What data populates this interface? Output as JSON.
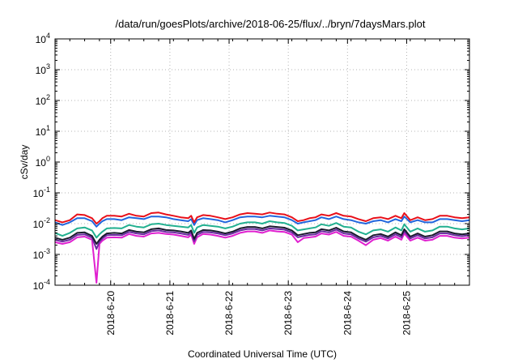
{
  "chart_data": {
    "type": "line",
    "title": "/data/run/goesPlots/archive/2018-06-25/flux/../bryn/7daysMars.plot",
    "xlabel": "Coordinated Universal Time (UTC)",
    "ylabel": "cSv/day",
    "x_range_days_from_jun19": [
      0,
      7
    ],
    "xticks": [
      {
        "x": 0.94,
        "label": "2018-6-20"
      },
      {
        "x": 1.94,
        "label": "2018-6-21"
      },
      {
        "x": 2.94,
        "label": "2018-6-22"
      },
      {
        "x": 3.94,
        "label": "2018-6-23"
      },
      {
        "x": 4.94,
        "label": "2018-6-24"
      },
      {
        "x": 5.94,
        "label": "2018-6-25"
      }
    ],
    "yscale": "log",
    "ylim": [
      0.0001,
      10000
    ],
    "yticks": [
      {
        "exp": -4,
        "base": "10",
        "sup": "-4"
      },
      {
        "exp": -3,
        "base": "10",
        "sup": "-3"
      },
      {
        "exp": -2,
        "base": "10",
        "sup": "-2"
      },
      {
        "exp": -1,
        "base": "10",
        "sup": "-1"
      },
      {
        "exp": 0,
        "base": "10",
        "sup": "0"
      },
      {
        "exp": 1,
        "base": "10",
        "sup": "1"
      },
      {
        "exp": 2,
        "base": "10",
        "sup": "2"
      },
      {
        "exp": 3,
        "base": "10",
        "sup": "3"
      },
      {
        "exp": 4,
        "base": "10",
        "sup": "4"
      }
    ],
    "grid": true,
    "x": [
      0,
      0.125,
      0.25,
      0.375,
      0.5,
      0.625,
      0.7,
      0.75,
      0.8,
      0.875,
      1.0,
      1.125,
      1.25,
      1.375,
      1.5,
      1.625,
      1.75,
      1.875,
      2.0,
      2.125,
      2.25,
      2.3,
      2.35,
      2.4,
      2.5,
      2.625,
      2.75,
      2.875,
      3.0,
      3.125,
      3.25,
      3.375,
      3.5,
      3.625,
      3.75,
      3.875,
      4.0,
      4.1,
      4.2,
      4.3,
      4.4,
      4.5,
      4.625,
      4.75,
      4.875,
      5.0,
      5.125,
      5.25,
      5.375,
      5.5,
      5.625,
      5.75,
      5.85,
      5.9,
      6.0,
      6.125,
      6.25,
      6.375,
      6.5,
      6.625,
      6.75,
      6.875,
      7.0
    ],
    "series": [
      {
        "color": "#e8101a",
        "values": [
          0.013,
          0.011,
          0.013,
          0.02,
          0.019,
          0.015,
          0.01,
          0.012,
          0.015,
          0.018,
          0.018,
          0.017,
          0.021,
          0.018,
          0.017,
          0.022,
          0.023,
          0.02,
          0.018,
          0.016,
          0.015,
          0.018,
          0.011,
          0.016,
          0.019,
          0.018,
          0.016,
          0.014,
          0.016,
          0.02,
          0.022,
          0.021,
          0.02,
          0.023,
          0.021,
          0.02,
          0.016,
          0.012,
          0.013,
          0.015,
          0.016,
          0.02,
          0.018,
          0.022,
          0.018,
          0.017,
          0.014,
          0.012,
          0.015,
          0.016,
          0.014,
          0.018,
          0.015,
          0.022,
          0.013,
          0.016,
          0.013,
          0.014,
          0.018,
          0.018,
          0.016,
          0.015,
          0.016
        ]
      },
      {
        "color": "#2266dd",
        "values": [
          0.011,
          0.009,
          0.011,
          0.015,
          0.015,
          0.012,
          0.008,
          0.01,
          0.012,
          0.014,
          0.014,
          0.013,
          0.016,
          0.015,
          0.014,
          0.017,
          0.017,
          0.016,
          0.014,
          0.013,
          0.012,
          0.014,
          0.009,
          0.013,
          0.015,
          0.014,
          0.013,
          0.011,
          0.013,
          0.016,
          0.017,
          0.017,
          0.016,
          0.018,
          0.017,
          0.016,
          0.013,
          0.01,
          0.011,
          0.012,
          0.013,
          0.016,
          0.014,
          0.017,
          0.014,
          0.013,
          0.011,
          0.01,
          0.012,
          0.013,
          0.011,
          0.014,
          0.012,
          0.017,
          0.011,
          0.013,
          0.011,
          0.011,
          0.014,
          0.014,
          0.013,
          0.012,
          0.013
        ]
      },
      {
        "color": "#22b090",
        "values": [
          0.005,
          0.004,
          0.005,
          0.007,
          0.0075,
          0.006,
          0.0035,
          0.0045,
          0.0055,
          0.007,
          0.0072,
          0.007,
          0.009,
          0.008,
          0.0075,
          0.0095,
          0.01,
          0.009,
          0.0085,
          0.008,
          0.0075,
          0.009,
          0.005,
          0.0075,
          0.009,
          0.0085,
          0.008,
          0.007,
          0.008,
          0.01,
          0.011,
          0.011,
          0.01,
          0.012,
          0.011,
          0.0105,
          0.0085,
          0.006,
          0.0065,
          0.007,
          0.0075,
          0.0095,
          0.0085,
          0.0105,
          0.008,
          0.0075,
          0.0055,
          0.0045,
          0.006,
          0.0065,
          0.0055,
          0.0075,
          0.006,
          0.0095,
          0.0055,
          0.007,
          0.0055,
          0.006,
          0.008,
          0.008,
          0.007,
          0.0065,
          0.007
        ]
      },
      {
        "color": "#1a1a2e",
        "values": [
          0.0035,
          0.003,
          0.0035,
          0.005,
          0.0052,
          0.004,
          0.0022,
          0.003,
          0.0038,
          0.0048,
          0.005,
          0.0048,
          0.0062,
          0.0055,
          0.0052,
          0.0066,
          0.007,
          0.0062,
          0.006,
          0.0056,
          0.005,
          0.006,
          0.0032,
          0.005,
          0.0062,
          0.006,
          0.0055,
          0.0048,
          0.0055,
          0.007,
          0.0078,
          0.0078,
          0.007,
          0.0082,
          0.0078,
          0.0074,
          0.006,
          0.0042,
          0.0046,
          0.005,
          0.0052,
          0.0066,
          0.006,
          0.0074,
          0.0056,
          0.0052,
          0.0038,
          0.003,
          0.0042,
          0.0046,
          0.0038,
          0.0052,
          0.0042,
          0.0066,
          0.0038,
          0.0048,
          0.0038,
          0.0042,
          0.0056,
          0.0056,
          0.0048,
          0.0045,
          0.0048
        ]
      },
      {
        "color": "#6a2aa0",
        "values": [
          0.003,
          0.0026,
          0.003,
          0.0043,
          0.0045,
          0.0035,
          0.0015,
          0.0026,
          0.0033,
          0.0042,
          0.0043,
          0.0042,
          0.0054,
          0.0048,
          0.0045,
          0.0057,
          0.006,
          0.0054,
          0.0052,
          0.0048,
          0.0043,
          0.0052,
          0.0027,
          0.0043,
          0.0054,
          0.0052,
          0.0048,
          0.0042,
          0.0048,
          0.006,
          0.0067,
          0.0067,
          0.006,
          0.007,
          0.0067,
          0.0064,
          0.0052,
          0.0036,
          0.004,
          0.0043,
          0.0045,
          0.0057,
          0.0052,
          0.0064,
          0.0048,
          0.0045,
          0.0033,
          0.0026,
          0.0036,
          0.004,
          0.0033,
          0.0045,
          0.0036,
          0.0057,
          0.0033,
          0.0042,
          0.0033,
          0.0036,
          0.0048,
          0.0048,
          0.0042,
          0.0039,
          0.0042
        ]
      },
      {
        "color": "#e020d0",
        "values": [
          0.0025,
          0.0022,
          0.0025,
          0.0036,
          0.0038,
          0.003,
          0.00012,
          0.0022,
          0.0028,
          0.0035,
          0.0036,
          0.0035,
          0.0046,
          0.004,
          0.0038,
          0.0048,
          0.005,
          0.0046,
          0.0044,
          0.004,
          0.0036,
          0.0044,
          0.0022,
          0.0036,
          0.0046,
          0.0044,
          0.004,
          0.0035,
          0.004,
          0.005,
          0.0056,
          0.0056,
          0.005,
          0.006,
          0.0056,
          0.0054,
          0.0044,
          0.0025,
          0.0034,
          0.0036,
          0.0038,
          0.0048,
          0.0044,
          0.0054,
          0.004,
          0.0038,
          0.0028,
          0.002,
          0.003,
          0.0034,
          0.0028,
          0.0038,
          0.003,
          0.0048,
          0.0028,
          0.0035,
          0.0028,
          0.003,
          0.004,
          0.004,
          0.0035,
          0.0033,
          0.0035
        ]
      }
    ]
  }
}
